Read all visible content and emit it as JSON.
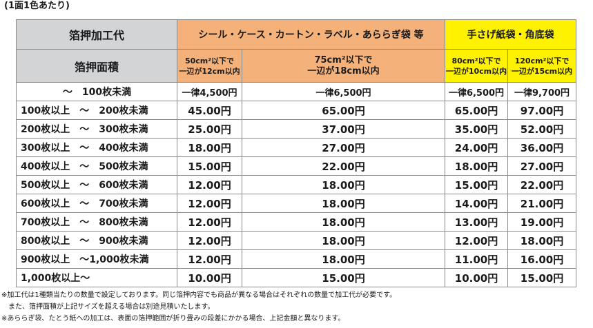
{
  "caption": "(1面1色あたり)",
  "header": {
    "processing_label": "箔押加工代",
    "area_label": "箔押面積",
    "group_seal": "シール・ケース・カートン・ラベル・あららぎ袋 等",
    "group_bag": "手さげ紙袋・角底袋",
    "col1_line1": "50cm²以下で",
    "col1_line2": "一辺が12cm以内",
    "col2_line1": "75cm²以下で",
    "col2_line2": "一辺が18cm以内",
    "col3_line1": "80cm²以下で",
    "col3_line2": "一辺が10cm以内",
    "col4_line1": "120cm²以下で",
    "col4_line2": "一辺が15cm以内"
  },
  "rows": [
    {
      "range": "　　　　 ～　100枚未満",
      "c1": "一律4,500円",
      "c2": "一律6,500円",
      "c3": "一律6,500円",
      "c4": "一律9,700円"
    },
    {
      "range": "100枚以上　～　200枚未満",
      "c1": "45.00円",
      "c2": "65.00円",
      "c3": "65.00円",
      "c4": "97.00円"
    },
    {
      "range": "200枚以上　～　300枚未満",
      "c1": "25.00円",
      "c2": "37.00円",
      "c3": "35.00円",
      "c4": "52.00円"
    },
    {
      "range": "300枚以上　～　400枚未満",
      "c1": "18.00円",
      "c2": "27.00円",
      "c3": "24.00円",
      "c4": "36.00円"
    },
    {
      "range": "400枚以上　～　500枚未満",
      "c1": "15.00円",
      "c2": "22.00円",
      "c3": "18.00円",
      "c4": "27.00円"
    },
    {
      "range": "500枚以上　～　600枚未満",
      "c1": "12.00円",
      "c2": "18.00円",
      "c3": "15.00円",
      "c4": "22.00円"
    },
    {
      "range": "600枚以上　～　700枚未満",
      "c1": "12.00円",
      "c2": "18.00円",
      "c3": "14.00円",
      "c4": "21.00円"
    },
    {
      "range": "700枚以上　～　800枚未満",
      "c1": "12.00円",
      "c2": "18.00円",
      "c3": "13.00円",
      "c4": "19.00円"
    },
    {
      "range": "800枚以上　～　900枚未満",
      "c1": "12.00円",
      "c2": "18.00円",
      "c3": "12.00円",
      "c4": "18.00円"
    },
    {
      "range": "900枚以上　～1,000枚未満",
      "c1": "12.00円",
      "c2": "18.00円",
      "c3": "11.00円",
      "c4": "16.00円"
    },
    {
      "range": "1,000枚以上～",
      "c1": "10.00円",
      "c2": "15.00円",
      "c3": "10.00円",
      "c4": "15.00円"
    }
  ],
  "notes": {
    "note1": "※加工代は1種類当たりの数量で設定しております。同じ箔押内容でも商品が異なる場合はそれぞれの数量で加工代が必要です。",
    "note2": "　また、箔押面積が上記サイズを超える場合は別途見積いたします。",
    "note3": "※あららぎ袋、たとう紙への加工は、表面の箔押範囲が折り畳みの段差にかかる場合、上記金額と異なります。"
  }
}
